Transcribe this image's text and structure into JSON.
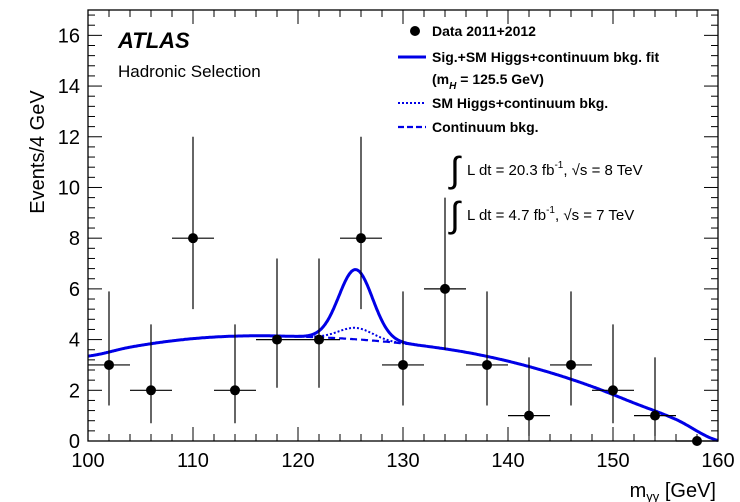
{
  "chart_data": {
    "type": "scatter",
    "experiment": "ATLAS",
    "selection": "Hadronic Selection",
    "xlabel": "m",
    "xlabel_sub": "γγ",
    "xlabel_unit": " [GeV]",
    "ylabel": "Events/4 GeV",
    "xlim": [
      100,
      160
    ],
    "ylim": [
      0,
      17
    ],
    "xticks": [
      100,
      110,
      120,
      130,
      140,
      150,
      160
    ],
    "yticks": [
      0,
      2,
      4,
      6,
      8,
      10,
      12,
      14,
      16
    ],
    "grid": false,
    "legend_position": "top-right",
    "legend": [
      {
        "label": "Data 2011+2012",
        "style": "marker"
      },
      {
        "label": "Sig.+SM Higgs+continuum bkg. fit",
        "style": "solid"
      },
      {
        "label": "(m",
        "sub": "H",
        "label_rest": " = 125.5 GeV)",
        "style": "none"
      },
      {
        "label": "SM Higgs+continuum bkg.",
        "style": "dotted"
      },
      {
        "label": "Continuum bkg.",
        "style": "dashed"
      }
    ],
    "lumi_lines": [
      {
        "prefix": "L dt = 20.3 fb",
        "sup": "-1",
        "suffix": ", √s = 8 TeV"
      },
      {
        "prefix": "L dt =  4.7 fb",
        "sup": "-1",
        "suffix": ",  √s = 7 TeV"
      }
    ],
    "data_points": [
      {
        "x": 102,
        "y": 3,
        "yerr_low": 1.6,
        "yerr_high": 2.9
      },
      {
        "x": 106,
        "y": 2,
        "yerr_low": 1.3,
        "yerr_high": 2.6
      },
      {
        "x": 110,
        "y": 8,
        "yerr_low": 2.8,
        "yerr_high": 4.0
      },
      {
        "x": 114,
        "y": 2,
        "yerr_low": 1.3,
        "yerr_high": 2.6
      },
      {
        "x": 118,
        "y": 4,
        "yerr_low": 1.9,
        "yerr_high": 3.2
      },
      {
        "x": 122,
        "y": 4,
        "yerr_low": 1.9,
        "yerr_high": 3.2
      },
      {
        "x": 126,
        "y": 8,
        "yerr_low": 2.8,
        "yerr_high": 4.0
      },
      {
        "x": 130,
        "y": 3,
        "yerr_low": 1.6,
        "yerr_high": 2.9
      },
      {
        "x": 134,
        "y": 6,
        "yerr_low": 2.4,
        "yerr_high": 3.6
      },
      {
        "x": 138,
        "y": 3,
        "yerr_low": 1.6,
        "yerr_high": 2.9
      },
      {
        "x": 142,
        "y": 1,
        "yerr_low": 0.8,
        "yerr_high": 2.3
      },
      {
        "x": 146,
        "y": 3,
        "yerr_low": 1.6,
        "yerr_high": 2.9
      },
      {
        "x": 150,
        "y": 2,
        "yerr_low": 1.3,
        "yerr_high": 2.6
      },
      {
        "x": 154,
        "y": 1,
        "yerr_low": 0.8,
        "yerr_high": 2.3
      },
      {
        "x": 158,
        "y": 0,
        "yerr_low": 0,
        "yerr_high": 0
      }
    ],
    "bin_half_width": 2,
    "continuum_curve": {
      "x": [
        100,
        104,
        108,
        112,
        116,
        120,
        124,
        128,
        132,
        136,
        140,
        144,
        148,
        152,
        156,
        160
      ],
      "y": [
        3.35,
        3.7,
        3.95,
        4.1,
        4.15,
        4.12,
        4.05,
        3.93,
        3.75,
        3.5,
        3.15,
        2.7,
        2.15,
        1.5,
        0.85,
        0.02
      ]
    },
    "signal": {
      "mass": 125.5,
      "sigma": 1.6,
      "fit_peak_height": 2.75,
      "sm_peak_height": 0.45
    },
    "colors": {
      "curves": "#0000e6",
      "data": "#000000"
    }
  }
}
